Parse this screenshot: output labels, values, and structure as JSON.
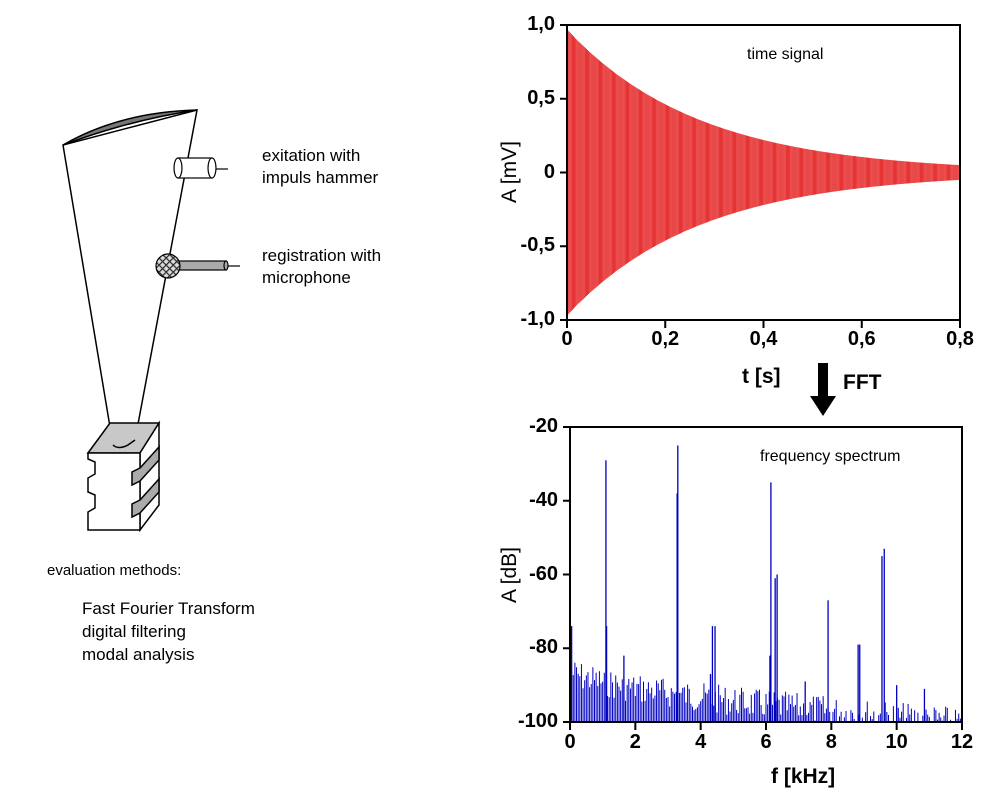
{
  "diagram": {
    "excitation_label": [
      "exitation with",
      "impuls hammer"
    ],
    "registration_label": [
      "registration with",
      "microphone"
    ],
    "evaluation_title": "evaluation methods:",
    "evaluation_methods": [
      "Fast Fourier Transform",
      "digital filtering",
      "modal analysis"
    ],
    "fft_label": "FFT"
  },
  "chart_data": [
    {
      "type": "line",
      "title": "time signal",
      "xlabel": "t [s]",
      "ylabel": "A [mV]",
      "xlim": [
        0,
        0.8
      ],
      "ylim": [
        -1.0,
        1.0
      ],
      "xticks": [
        "0",
        "0,2",
        "0,4",
        "0,6",
        "0,8"
      ],
      "yticks": [
        "1,0",
        "0,5",
        "0",
        "-0,5",
        "-1,0"
      ],
      "series": [
        {
          "name": "decaying oscillation",
          "color": "#e00000",
          "initial_amplitude": 0.97,
          "decay_time_constant_s": 0.27
        }
      ]
    },
    {
      "type": "line",
      "title": "frequency spectrum",
      "xlabel": "f [kHz]",
      "ylabel": "A [dB]",
      "xlim": [
        0,
        12
      ],
      "ylim": [
        -100,
        -20
      ],
      "xticks": [
        "0",
        "2",
        "4",
        "6",
        "8",
        "10",
        "12"
      ],
      "yticks": [
        "-20",
        "-40",
        "-60",
        "-80",
        "-100"
      ],
      "series": [
        {
          "name": "spectrum",
          "color": "#0000c0",
          "peaks": [
            {
              "f": 0.05,
              "db": -74
            },
            {
              "f": 1.1,
              "db": -29
            },
            {
              "f": 1.12,
              "db": -74
            },
            {
              "f": 1.65,
              "db": -82
            },
            {
              "f": 3.28,
              "db": -38
            },
            {
              "f": 3.3,
              "db": -25
            },
            {
              "f": 4.3,
              "db": -87
            },
            {
              "f": 4.36,
              "db": -74
            },
            {
              "f": 4.44,
              "db": -74
            },
            {
              "f": 6.12,
              "db": -82
            },
            {
              "f": 6.15,
              "db": -35
            },
            {
              "f": 6.28,
              "db": -61
            },
            {
              "f": 6.34,
              "db": -60
            },
            {
              "f": 7.2,
              "db": -89
            },
            {
              "f": 7.9,
              "db": -67
            },
            {
              "f": 8.82,
              "db": -79
            },
            {
              "f": 8.87,
              "db": -79
            },
            {
              "f": 9.55,
              "db": -55
            },
            {
              "f": 9.62,
              "db": -53
            },
            {
              "f": 10.0,
              "db": -90
            },
            {
              "f": 10.85,
              "db": -91
            }
          ],
          "noise_floor_db": {
            "start": -84,
            "end": -98
          }
        }
      ]
    }
  ]
}
